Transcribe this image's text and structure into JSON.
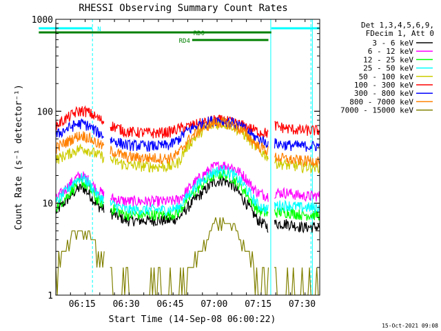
{
  "chart_data": {
    "type": "line",
    "title": "RHESSI Observing Summary Count Rates",
    "xlabel": "Start Time (14-Sep-08 06:00:22)",
    "ylabel": "Count Rate (s⁻¹ detector⁻¹)",
    "yscale": "log",
    "ylim": [
      1,
      1000
    ],
    "xlim_minutes": [
      6,
      96
    ],
    "x_ticks": [
      {
        "label": "06:15",
        "minute": 15
      },
      {
        "label": "06:30",
        "minute": 30
      },
      {
        "label": "06:45",
        "minute": 45
      },
      {
        "label": "07:00",
        "minute": 60
      },
      {
        "label": "07:15",
        "minute": 75
      },
      {
        "label": "07:30",
        "minute": 90
      }
    ],
    "y_ticks": [
      {
        "label": "1",
        "value": 1
      },
      {
        "label": "10",
        "value": 10
      },
      {
        "label": "100",
        "value": 100
      },
      {
        "label": "1000",
        "value": 1000
      }
    ],
    "legend_header": [
      "Det 1,3,4,5,6,9,",
      "FDecim 1, Att 0"
    ],
    "legend_placement": "right",
    "data_gaps_minutes": [
      [
        22.5,
        24.5
      ],
      [
        78.5,
        80.5
      ]
    ],
    "series": [
      {
        "name": "3 - 6 keV",
        "color": "#000000",
        "x": [
          6,
          10,
          13,
          15,
          17,
          20,
          24,
          30,
          40,
          45,
          48,
          51,
          56,
          60,
          63,
          66,
          70,
          73,
          75,
          78.5,
          80.5,
          85,
          90,
          96
        ],
        "y": [
          8,
          11,
          14,
          15,
          13,
          9.5,
          8,
          6.5,
          6.5,
          6.5,
          7,
          9,
          13,
          17,
          18,
          16,
          11,
          8,
          6.5,
          5.5,
          6,
          6,
          5.5,
          5.5
        ]
      },
      {
        "name": "6 - 12 keV",
        "color": "#ff00ff",
        "x": [
          6,
          10,
          13,
          15,
          17,
          20,
          24,
          30,
          40,
          45,
          48,
          51,
          56,
          60,
          63,
          66,
          70,
          73,
          75,
          78.5,
          80.5,
          85,
          90,
          96
        ],
        "y": [
          11,
          15,
          19,
          20,
          18,
          14,
          11.5,
          10.5,
          10.5,
          10.5,
          11,
          14,
          20,
          25,
          26,
          25,
          20,
          15,
          13,
          12,
          13,
          13,
          12,
          12
        ]
      },
      {
        "name": "12 - 25 keV",
        "color": "#00ff00",
        "x": [
          6,
          10,
          13,
          15,
          17,
          20,
          24,
          30,
          40,
          45,
          48,
          51,
          56,
          60,
          63,
          66,
          70,
          73,
          75,
          78.5,
          80.5,
          85,
          90,
          96
        ],
        "y": [
          9,
          12,
          16,
          17,
          15,
          11,
          9,
          7.5,
          7.5,
          7.5,
          8,
          11,
          16,
          20,
          21,
          19,
          14,
          10,
          8.5,
          7.5,
          8,
          8,
          7.5,
          7.5
        ]
      },
      {
        "name": "25 - 50 keV",
        "color": "#00ffff",
        "x": [
          6,
          10,
          13,
          15,
          17,
          20,
          24,
          30,
          40,
          45,
          48,
          51,
          56,
          60,
          63,
          66,
          70,
          73,
          75,
          78.5,
          80.5,
          85,
          90,
          96
        ],
        "y": [
          10,
          14,
          18,
          19,
          17,
          12.5,
          10,
          8.5,
          8.5,
          8.5,
          9,
          12,
          18,
          22,
          23,
          21,
          16,
          11.5,
          9.5,
          8.5,
          9.5,
          9.5,
          9,
          9
        ]
      },
      {
        "name": "50 - 100 keV",
        "color": "#cccc00",
        "x": [
          6,
          10,
          13,
          15,
          17,
          20,
          24,
          30,
          40,
          45,
          48,
          51,
          56,
          60,
          63,
          66,
          70,
          73,
          75,
          78.5,
          80.5,
          85,
          90,
          96
        ],
        "y": [
          30,
          34,
          38,
          40,
          38,
          34,
          30,
          26,
          25,
          25,
          28,
          42,
          62,
          72,
          74,
          70,
          57,
          45,
          38,
          32,
          28,
          26,
          25,
          25
        ]
      },
      {
        "name": "100 - 300 keV",
        "color": "#ff0000",
        "x": [
          6,
          10,
          13,
          15,
          17,
          20,
          24,
          30,
          40,
          45,
          48,
          51,
          56,
          60,
          63,
          66,
          70,
          73,
          75,
          78.5,
          80.5,
          85,
          90,
          96
        ],
        "y": [
          70,
          85,
          98,
          102,
          98,
          85,
          72,
          60,
          58,
          60,
          65,
          68,
          75,
          80,
          80,
          76,
          70,
          64,
          60,
          58,
          70,
          65,
          62,
          62
        ]
      },
      {
        "name": "300 - 800 keV",
        "color": "#0000ff",
        "x": [
          6,
          10,
          13,
          15,
          17,
          20,
          24,
          30,
          40,
          45,
          48,
          51,
          56,
          60,
          63,
          66,
          70,
          73,
          75,
          78.5,
          80.5,
          85,
          90,
          96
        ],
        "y": [
          55,
          65,
          72,
          74,
          70,
          60,
          50,
          43,
          42,
          43,
          50,
          62,
          74,
          80,
          80,
          76,
          66,
          55,
          50,
          45,
          45,
          43,
          42,
          42
        ]
      },
      {
        "name": "800 - 7000 keV",
        "color": "#ff8000",
        "x": [
          6,
          10,
          13,
          15,
          17,
          20,
          24,
          30,
          40,
          45,
          48,
          51,
          56,
          60,
          63,
          66,
          70,
          73,
          75,
          78.5,
          80.5,
          85,
          90,
          96
        ],
        "y": [
          40,
          47,
          53,
          55,
          52,
          45,
          38,
          32,
          31,
          31,
          35,
          48,
          66,
          75,
          76,
          72,
          60,
          48,
          42,
          37,
          32,
          30,
          29,
          29
        ]
      },
      {
        "name": "7000 - 15000 keV",
        "color": "#808000",
        "x": [
          6,
          8,
          10,
          12,
          13,
          15,
          17,
          19,
          20,
          22,
          24,
          30,
          40,
          47,
          50,
          53,
          55,
          57,
          59,
          60,
          63,
          65,
          67,
          69,
          71,
          73,
          76,
          78,
          80,
          90,
          96
        ],
        "y": [
          1.3,
          2.2,
          3,
          4,
          5,
          5,
          5,
          4,
          3,
          2,
          1.3,
          1,
          1,
          1,
          1.2,
          2,
          3,
          4,
          5,
          6,
          6,
          6,
          5,
          4,
          3,
          2,
          1.5,
          1.2,
          1,
          1,
          1
        ]
      }
    ],
    "annotations": [
      {
        "label": "N",
        "color": "#00ffff",
        "segments": [
          [
            0.2,
            18.5
          ],
          [
            79.5,
            96
          ]
        ],
        "level": "top"
      },
      {
        "label": "RD0",
        "color": "#008000",
        "segments": [
          [
            0.2,
            79.5
          ]
        ],
        "level": "middle"
      },
      {
        "label": "RD4",
        "color": "#008000",
        "segments": [
          [
            52.5,
            78.5
          ]
        ],
        "level": "low"
      }
    ],
    "saa_boundaries_minutes": [
      18.5,
      93
    ],
    "night_boundaries_minutes": [
      79.3,
      93.5
    ],
    "grid": false
  },
  "footer_timestamp": "15-Oct-2021 09:08"
}
